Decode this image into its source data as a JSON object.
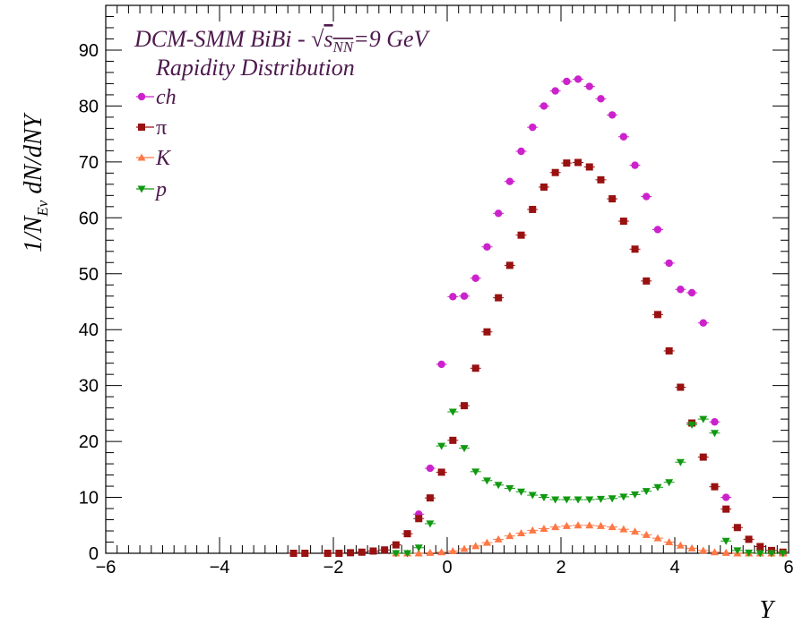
{
  "chart_data": {
    "type": "scatter",
    "title": "DCM-SMM BiBi - ",
    "title_sqrt_symbol": "√",
    "title_s": "s",
    "title_sub": "NN",
    "title_energy": "=9 GeV",
    "subtitle": "Rapidity Distribution",
    "xlabel": "Y",
    "ylabel_prefix": "1/N",
    "ylabel_sub": "Ev",
    "ylabel_suffix": " dN/dNY",
    "xlim": [
      -6,
      6
    ],
    "ylim": [
      0,
      98
    ],
    "x_ticks": [
      "−6",
      "−4",
      "−2",
      "0",
      "2",
      "4",
      "6"
    ],
    "y_ticks": [
      "0",
      "10",
      "20",
      "30",
      "40",
      "50",
      "60",
      "70",
      "80",
      "90"
    ],
    "legend_placement": "top-left",
    "grid": false,
    "series": [
      {
        "name": "ch",
        "marker": "circle",
        "color": "#cc22cc",
        "x": [
          -0.5,
          -0.3,
          -0.1,
          0.1,
          0.3,
          0.5,
          0.7,
          0.9,
          1.1,
          1.3,
          1.5,
          1.7,
          1.9,
          2.1,
          2.3,
          2.5,
          2.7,
          2.9,
          3.1,
          3.3,
          3.5,
          3.7,
          3.9,
          4.1,
          4.3,
          4.5,
          4.7,
          4.9
        ],
        "y": [
          7.0,
          15.2,
          33.8,
          45.9,
          46.0,
          49.2,
          54.8,
          60.8,
          66.5,
          71.9,
          76.2,
          80.0,
          82.7,
          84.4,
          84.8,
          83.5,
          81.3,
          78.4,
          74.5,
          69.4,
          63.8,
          57.9,
          51.9,
          47.2,
          46.6,
          41.2,
          23.5,
          10.0
        ]
      },
      {
        "name": "π",
        "marker": "square",
        "color": "#991111",
        "x": [
          -2.7,
          -2.5,
          -2.1,
          -1.9,
          -1.7,
          -1.5,
          -1.3,
          -1.1,
          -0.9,
          -0.7,
          -0.5,
          -0.3,
          -0.1,
          0.1,
          0.3,
          0.5,
          0.7,
          0.9,
          1.1,
          1.3,
          1.5,
          1.7,
          1.9,
          2.1,
          2.3,
          2.5,
          2.7,
          2.9,
          3.1,
          3.3,
          3.5,
          3.7,
          3.9,
          4.1,
          4.3,
          4.5,
          4.7,
          4.9,
          5.1,
          5.3,
          5.5,
          5.7,
          5.9
        ],
        "y": [
          0.0,
          0.0,
          0.0,
          0.0,
          0.1,
          0.2,
          0.4,
          0.6,
          1.5,
          3.5,
          6.2,
          9.9,
          14.5,
          20.2,
          26.4,
          33.1,
          39.6,
          45.7,
          51.5,
          56.9,
          61.5,
          65.5,
          68.1,
          69.8,
          69.9,
          69.1,
          66.8,
          63.4,
          59.4,
          54.4,
          48.7,
          42.7,
          36.2,
          29.7,
          23.3,
          17.2,
          11.9,
          7.9,
          4.6,
          2.5,
          1.2,
          0.5,
          0.2
        ]
      },
      {
        "name": "K",
        "marker": "triangle-up",
        "color": "#ff7744",
        "x": [
          -0.9,
          -0.7,
          -0.5,
          -0.3,
          -0.1,
          0.1,
          0.3,
          0.5,
          0.7,
          0.9,
          1.1,
          1.3,
          1.5,
          1.7,
          1.9,
          2.1,
          2.3,
          2.5,
          2.7,
          2.9,
          3.1,
          3.3,
          3.5,
          3.7,
          3.9,
          4.1,
          4.3,
          4.5,
          4.7,
          4.9,
          5.1,
          5.3,
          5.5,
          5.7,
          5.9
        ],
        "y": [
          0.0,
          0.0,
          0.0,
          0.1,
          0.2,
          0.4,
          0.8,
          1.3,
          1.9,
          2.5,
          3.1,
          3.6,
          4.1,
          4.4,
          4.7,
          4.9,
          5.0,
          5.0,
          4.9,
          4.7,
          4.3,
          3.9,
          3.3,
          2.7,
          2.0,
          1.4,
          0.9,
          0.5,
          0.2,
          0.1,
          0.0,
          0.0,
          0.0,
          0.0,
          0.0
        ]
      },
      {
        "name": "p",
        "marker": "triangle-down",
        "color": "#119911",
        "x": [
          -0.9,
          -0.7,
          -0.5,
          -0.3,
          -0.1,
          0.1,
          0.3,
          0.5,
          0.7,
          0.9,
          1.1,
          1.3,
          1.5,
          1.7,
          1.9,
          2.1,
          2.3,
          2.5,
          2.7,
          2.9,
          3.1,
          3.3,
          3.5,
          3.7,
          3.9,
          4.1,
          4.3,
          4.5,
          4.7,
          4.9,
          5.1,
          5.3,
          5.5,
          5.7,
          5.9
        ],
        "y": [
          0.0,
          0.0,
          1.0,
          5.3,
          19.2,
          25.3,
          18.8,
          14.6,
          13.0,
          12.2,
          11.6,
          11.0,
          10.4,
          10.0,
          9.6,
          9.6,
          9.6,
          9.6,
          9.7,
          9.8,
          10.1,
          10.5,
          11.1,
          11.8,
          12.7,
          16.3,
          23.0,
          24.0,
          21.5,
          2.2,
          0.5,
          0.1,
          0.0,
          0.0,
          0.0
        ]
      }
    ]
  }
}
